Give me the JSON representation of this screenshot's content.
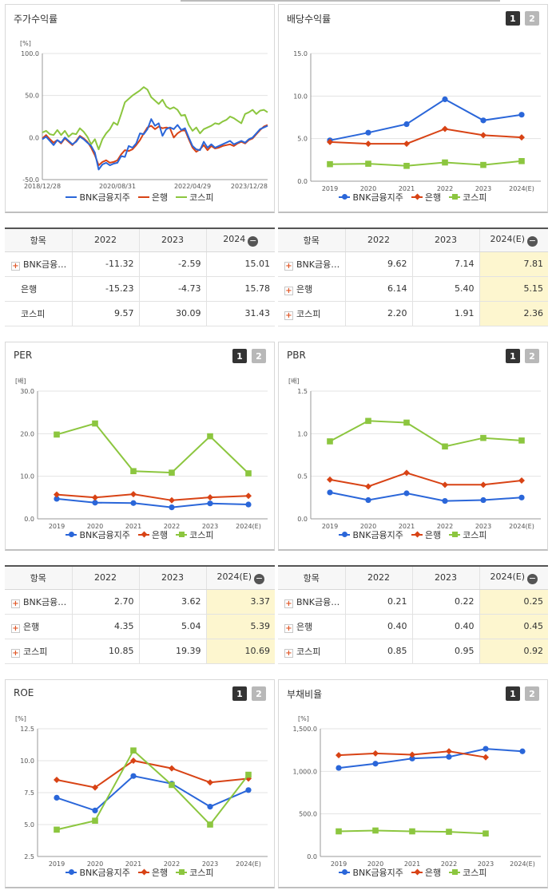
{
  "colors": {
    "bnk": "#2a66d9",
    "bank": "#d84315",
    "kospi": "#8cc63f"
  },
  "series_names": [
    "BNK금융지주",
    "은행",
    "코스피"
  ],
  "page_buttons": [
    "1",
    "2"
  ],
  "charts": {
    "stock": {
      "title": "주가수익률",
      "unit": "[%]",
      "chart_data": {
        "type": "line",
        "x_ticks": [
          "2018/12/28",
          "2020/08/31",
          "2022/04/29",
          "2023/12/28"
        ],
        "ylim": [
          -50,
          100
        ],
        "y_ticks": [
          "100.0",
          "50.0",
          "0.0",
          "-50.0"
        ],
        "series": [
          {
            "name": "BNK금융지주",
            "values": [
              -2,
              1,
              -4,
              -9,
              -3,
              -6,
              0,
              -4,
              -8,
              -5,
              1,
              -2,
              -6,
              -10,
              -18,
              -38,
              -32,
              -30,
              -33,
              -31,
              -30,
              -22,
              -23,
              -10,
              -12,
              -7,
              5,
              4,
              10,
              22,
              14,
              17,
              2,
              10,
              12,
              10,
              15,
              9,
              11,
              0,
              -10,
              -14,
              -15,
              -5,
              -12,
              -8,
              -12,
              -10,
              -8,
              -6,
              -4,
              -8,
              -6,
              -4,
              -6,
              -2,
              0,
              5,
              10,
              12,
              14
            ]
          },
          {
            "name": "은행",
            "values": [
              -1,
              3,
              -2,
              -6,
              -3,
              -7,
              -1,
              -5,
              -9,
              -4,
              2,
              -1,
              -5,
              -12,
              -21,
              -33,
              -29,
              -27,
              -30,
              -29,
              -27,
              -20,
              -15,
              -16,
              -14,
              -9,
              -3,
              5,
              12,
              14,
              10,
              13,
              11,
              12,
              11,
              0,
              5,
              8,
              9,
              -2,
              -12,
              -17,
              -14,
              -9,
              -15,
              -10,
              -13,
              -12,
              -10,
              -9,
              -8,
              -10,
              -7,
              -5,
              -7,
              -3,
              -1,
              4,
              9,
              13,
              15
            ]
          },
          {
            "name": "코스피",
            "values": [
              6,
              8,
              4,
              3,
              9,
              3,
              8,
              1,
              5,
              4,
              11,
              7,
              1,
              -8,
              -2,
              -14,
              -2,
              5,
              10,
              18,
              15,
              28,
              42,
              46,
              50,
              53,
              56,
              60,
              57,
              48,
              44,
              40,
              45,
              37,
              34,
              36,
              33,
              26,
              27,
              15,
              8,
              12,
              5,
              10,
              12,
              14,
              17,
              16,
              19,
              21,
              25,
              23,
              20,
              17,
              28,
              30,
              33,
              28,
              32,
              33,
              30
            ]
          }
        ]
      },
      "legend": [
        "BNK금융지주",
        "은행",
        "코스피"
      ]
    },
    "dividend": {
      "title": "배당수익률",
      "unit": "",
      "chart_data": {
        "type": "line",
        "categories": [
          "2019",
          "2020",
          "2021",
          "2022",
          "2023",
          "2024(E)"
        ],
        "ylim": [
          0,
          15
        ],
        "y_ticks": [
          "15.0",
          "10.0",
          "5.0",
          "0.0"
        ],
        "series": [
          {
            "name": "BNK금융지주",
            "values": [
              4.8,
              5.7,
              6.7,
              9.62,
              7.14,
              7.81
            ]
          },
          {
            "name": "은행",
            "values": [
              4.6,
              4.4,
              4.4,
              6.14,
              5.4,
              5.15
            ]
          },
          {
            "name": "코스피",
            "values": [
              2.0,
              2.05,
              1.8,
              2.2,
              1.91,
              2.36
            ]
          }
        ]
      },
      "legend": [
        "BNK금융지주",
        "은행",
        "코스피"
      ]
    },
    "per": {
      "title": "PER",
      "unit": "[배]",
      "chart_data": {
        "type": "line",
        "categories": [
          "2019",
          "2020",
          "2021",
          "2022",
          "2023",
          "2024(E)"
        ],
        "ylim": [
          0,
          30
        ],
        "y_ticks": [
          "30.0",
          "20.0",
          "10.0",
          "0.0"
        ],
        "series": [
          {
            "name": "BNK금융지주",
            "values": [
              4.7,
              3.8,
              3.7,
              2.7,
              3.62,
              3.37
            ]
          },
          {
            "name": "은행",
            "values": [
              5.7,
              5.0,
              5.8,
              4.35,
              5.04,
              5.39
            ]
          },
          {
            "name": "코스피",
            "values": [
              19.8,
              22.4,
              11.2,
              10.85,
              19.39,
              10.69
            ]
          }
        ]
      },
      "legend": [
        "BNK금융지주",
        "은행",
        "코스피"
      ]
    },
    "pbr": {
      "title": "PBR",
      "unit": "[배]",
      "chart_data": {
        "type": "line",
        "categories": [
          "2019",
          "2020",
          "2021",
          "2022",
          "2023",
          "2024(E)"
        ],
        "ylim": [
          0,
          1.5
        ],
        "y_ticks": [
          "1.5",
          "1.0",
          "0.5",
          "0.0"
        ],
        "series": [
          {
            "name": "BNK금융지주",
            "values": [
              0.31,
              0.22,
              0.3,
              0.21,
              0.22,
              0.25
            ]
          },
          {
            "name": "은행",
            "values": [
              0.46,
              0.38,
              0.54,
              0.4,
              0.4,
              0.45
            ]
          },
          {
            "name": "코스피",
            "values": [
              0.91,
              1.15,
              1.13,
              0.85,
              0.95,
              0.92
            ]
          }
        ]
      },
      "legend": [
        "BNK금융지주",
        "은행",
        "코스피"
      ]
    },
    "roe": {
      "title": "ROE",
      "unit": "[%]",
      "chart_data": {
        "type": "line",
        "categories": [
          "2019",
          "2020",
          "2021",
          "2022",
          "2023",
          "2024(E)"
        ],
        "ylim": [
          2.5,
          12.5
        ],
        "y_ticks": [
          "12.5",
          "10.0",
          "7.5",
          "5.0",
          "2.5"
        ],
        "series": [
          {
            "name": "BNK금융지주",
            "values": [
              7.1,
              6.1,
              8.8,
              8.2,
              6.4,
              7.7
            ]
          },
          {
            "name": "은행",
            "values": [
              8.5,
              7.9,
              10.0,
              9.4,
              8.3,
              8.6
            ]
          },
          {
            "name": "코스피",
            "values": [
              4.6,
              5.3,
              10.8,
              8.1,
              5.0,
              8.9
            ]
          }
        ]
      },
      "legend": [
        "BNK금융지주",
        "은행",
        "코스피"
      ]
    },
    "debt": {
      "title": "부채비율",
      "unit": "[%]",
      "chart_data": {
        "type": "line",
        "categories": [
          "2019",
          "2020",
          "2021",
          "2022",
          "2023",
          "2024(E)"
        ],
        "ylim": [
          0,
          1500
        ],
        "y_ticks": [
          "1,500.0",
          "1,000.0",
          "500.0",
          "0.0"
        ],
        "series": [
          {
            "name": "BNK금융지주",
            "values": [
              1040,
              1090,
              1150,
              1170,
              1265,
              1235
            ]
          },
          {
            "name": "은행",
            "values": [
              1190,
              1210,
              1195,
              1235,
              1165,
              null
            ]
          },
          {
            "name": "코스피",
            "values": [
              295,
              305,
              295,
              290,
              270,
              null
            ]
          }
        ]
      },
      "legend": [
        "BNK금융지주",
        "은행",
        "코스피"
      ]
    }
  },
  "tables": {
    "stock": {
      "headers": [
        "항목",
        "2022",
        "2023",
        "2024"
      ],
      "rows": [
        {
          "name": "BNK금융…",
          "values": [
            "-11.32",
            "-2.59",
            "15.01"
          ]
        },
        {
          "name": "은행",
          "values": [
            "-15.23",
            "-4.73",
            "15.78"
          ]
        },
        {
          "name": "코스피",
          "values": [
            "9.57",
            "30.09",
            "31.43"
          ]
        }
      ]
    },
    "dividend": {
      "headers": [
        "항목",
        "2022",
        "2023",
        "2024(E)"
      ],
      "rows": [
        {
          "name": "BNK금융…",
          "values": [
            "9.62",
            "7.14",
            "7.81"
          ]
        },
        {
          "name": "은행",
          "values": [
            "6.14",
            "5.40",
            "5.15"
          ]
        },
        {
          "name": "코스피",
          "values": [
            "2.20",
            "1.91",
            "2.36"
          ]
        }
      ]
    },
    "per": {
      "headers": [
        "항목",
        "2022",
        "2023",
        "2024(E)"
      ],
      "rows": [
        {
          "name": "BNK금융…",
          "values": [
            "2.70",
            "3.62",
            "3.37"
          ]
        },
        {
          "name": "은행",
          "values": [
            "4.35",
            "5.04",
            "5.39"
          ]
        },
        {
          "name": "코스피",
          "values": [
            "10.85",
            "19.39",
            "10.69"
          ]
        }
      ]
    },
    "pbr": {
      "headers": [
        "항목",
        "2022",
        "2023",
        "2024(E)"
      ],
      "rows": [
        {
          "name": "BNK금융…",
          "values": [
            "0.21",
            "0.22",
            "0.25"
          ]
        },
        {
          "name": "은행",
          "values": [
            "0.40",
            "0.40",
            "0.45"
          ]
        },
        {
          "name": "코스피",
          "values": [
            "0.85",
            "0.95",
            "0.92"
          ]
        }
      ]
    }
  }
}
